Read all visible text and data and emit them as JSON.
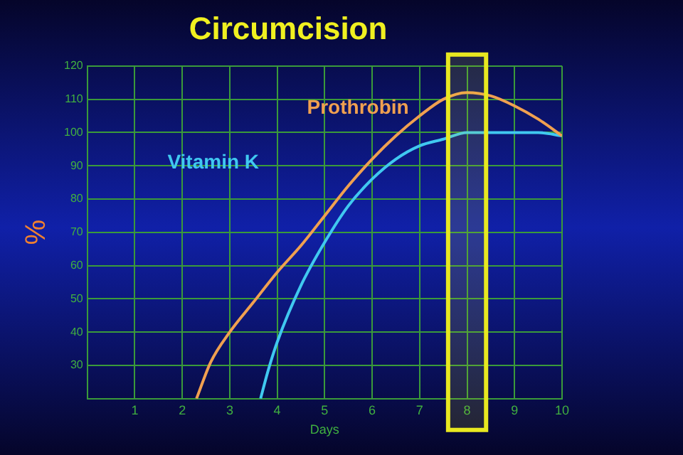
{
  "chart_data": {
    "type": "line",
    "title": "Circumcision",
    "xlabel": "Days",
    "ylabel": "%",
    "xlim": [
      0,
      10
    ],
    "xticks": [
      {
        "value": 0,
        "label": null
      },
      1,
      2,
      3,
      4,
      5,
      6,
      7,
      8,
      9,
      10
    ],
    "ylim": [
      20,
      120
    ],
    "yticks": [
      {
        "value": 20,
        "label": null
      },
      30,
      40,
      50,
      60,
      70,
      80,
      90,
      100,
      110,
      120
    ],
    "grid": true,
    "legend": false,
    "marker": "none",
    "line_style": "solid",
    "series": [
      {
        "name": "Prothrobin",
        "color": "#f0a050",
        "x": [
          2.3,
          2.6,
          3,
          3.5,
          4,
          4.5,
          5,
          5.5,
          6,
          6.5,
          7,
          7.5,
          8,
          8.5,
          9,
          9.5,
          10
        ],
        "values": [
          20,
          31,
          40,
          49,
          58,
          66,
          75,
          84,
          92,
          99,
          105,
          110,
          112,
          111,
          108,
          104,
          99
        ]
      },
      {
        "name": "Vitamin K",
        "color": "#40c8f0",
        "x": [
          3.65,
          3.8,
          4,
          4.5,
          5,
          5.5,
          6,
          6.5,
          7,
          7.5,
          8,
          8.5,
          9,
          9.5,
          10
        ],
        "values": [
          20,
          28,
          37,
          54,
          67,
          78,
          86,
          92,
          96,
          98,
          100,
          100,
          100,
          100,
          99
        ]
      }
    ],
    "bands": [
      {
        "axis": "x",
        "from": 7.6,
        "to": 8.4,
        "color": "#e8e820"
      }
    ]
  }
}
